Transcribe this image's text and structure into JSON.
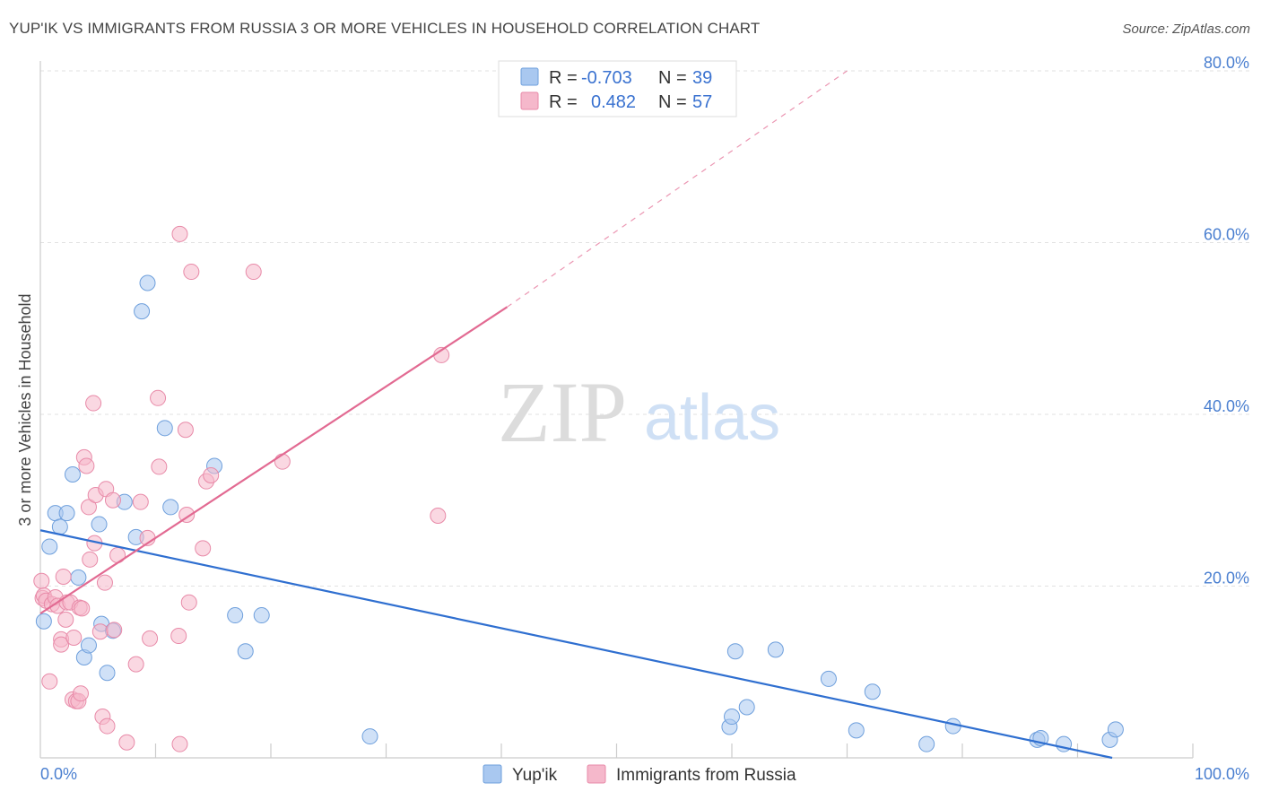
{
  "header": {
    "title": "YUP'IK VS IMMIGRANTS FROM RUSSIA 3 OR MORE VEHICLES IN HOUSEHOLD CORRELATION CHART",
    "source": "Source: ZipAtlas.com"
  },
  "watermark": {
    "zip": "ZIP",
    "atlas": "atlas"
  },
  "legend": {
    "rows": [
      {
        "r_label": "R =",
        "r_value": "-0.703",
        "n_label": "N =",
        "n_value": "39",
        "color": "#a9c8f0"
      },
      {
        "r_label": "R =",
        "r_value": "0.482",
        "n_label": "N =",
        "n_value": "57",
        "color": "#f5b8cb"
      }
    ]
  },
  "bottom_legend": [
    {
      "label": "Yup'ik",
      "color": "#a9c8f0"
    },
    {
      "label": "Immigrants from Russia",
      "color": "#f5b8cb"
    }
  ],
  "chart_data": {
    "type": "scatter",
    "title": "YUP'IK VS IMMIGRANTS FROM RUSSIA 3 OR MORE VEHICLES IN HOUSEHOLD CORRELATION CHART",
    "xlabel": "",
    "ylabel": "3 or more Vehicles in Household",
    "xlim": [
      0,
      100
    ],
    "ylim": [
      0,
      80
    ],
    "x_tick_labels": [
      "0.0%",
      "100.0%"
    ],
    "y_ticks": [
      20,
      40,
      60,
      80
    ],
    "y_tick_labels": [
      "20.0%",
      "40.0%",
      "60.0%",
      "80.0%"
    ],
    "grid": true,
    "legend_position": "top-center",
    "series": [
      {
        "name": "Yup'ik",
        "color": "#a9c8f0",
        "stroke": "#6e9fdc",
        "trend_color": "#2f6fd0",
        "trend": {
          "x0": 0,
          "y0": 26.5,
          "x1": 93,
          "y1": 0
        },
        "points": [
          [
            0.3,
            15.9
          ],
          [
            0.8,
            24.6
          ],
          [
            1.3,
            28.5
          ],
          [
            1.7,
            26.9
          ],
          [
            2.3,
            28.5
          ],
          [
            2.8,
            33.0
          ],
          [
            3.3,
            21.0
          ],
          [
            3.8,
            11.7
          ],
          [
            4.2,
            13.1
          ],
          [
            5.1,
            27.2
          ],
          [
            5.3,
            15.6
          ],
          [
            5.8,
            9.9
          ],
          [
            6.3,
            14.8
          ],
          [
            7.3,
            29.8
          ],
          [
            8.3,
            25.7
          ],
          [
            8.8,
            52.0
          ],
          [
            9.3,
            55.3
          ],
          [
            10.8,
            38.4
          ],
          [
            11.3,
            29.2
          ],
          [
            15.1,
            34.0
          ],
          [
            16.9,
            16.6
          ],
          [
            17.8,
            12.4
          ],
          [
            19.2,
            16.6
          ],
          [
            28.6,
            2.5
          ],
          [
            59.8,
            3.6
          ],
          [
            60.0,
            4.8
          ],
          [
            60.3,
            12.4
          ],
          [
            61.3,
            5.9
          ],
          [
            63.8,
            12.6
          ],
          [
            68.4,
            9.2
          ],
          [
            70.8,
            3.2
          ],
          [
            72.2,
            7.7
          ],
          [
            76.9,
            1.6
          ],
          [
            79.2,
            3.7
          ],
          [
            86.5,
            2.1
          ],
          [
            86.8,
            2.3
          ],
          [
            88.8,
            1.6
          ],
          [
            92.8,
            2.1
          ],
          [
            93.3,
            3.3
          ]
        ]
      },
      {
        "name": "Immigrants from Russia",
        "color": "#f5b8cb",
        "stroke": "#e88aa8",
        "trend_color": "#e26a92",
        "trend": {
          "x0": 0,
          "y0": 16.8,
          "x1": 40.5,
          "y1": 52.5
        },
        "trend_dashed": {
          "x0": 40.5,
          "y0": 52.5,
          "x1": 70,
          "y1": 80
        },
        "points": [
          [
            0.1,
            20.6
          ],
          [
            0.2,
            18.6
          ],
          [
            0.3,
            18.9
          ],
          [
            0.5,
            18.3
          ],
          [
            0.8,
            8.9
          ],
          [
            1.0,
            17.9
          ],
          [
            1.3,
            18.7
          ],
          [
            1.5,
            17.7
          ],
          [
            1.8,
            13.8
          ],
          [
            1.8,
            13.2
          ],
          [
            2.0,
            21.1
          ],
          [
            2.2,
            16.1
          ],
          [
            2.3,
            18.1
          ],
          [
            2.6,
            18.1
          ],
          [
            2.8,
            6.8
          ],
          [
            2.9,
            14.0
          ],
          [
            3.1,
            6.6
          ],
          [
            3.3,
            6.6
          ],
          [
            3.4,
            17.5
          ],
          [
            3.5,
            7.5
          ],
          [
            3.6,
            17.4
          ],
          [
            3.8,
            35.0
          ],
          [
            4.0,
            34.0
          ],
          [
            4.2,
            29.2
          ],
          [
            4.3,
            23.1
          ],
          [
            4.6,
            41.3
          ],
          [
            4.7,
            25.0
          ],
          [
            4.8,
            30.6
          ],
          [
            5.2,
            14.7
          ],
          [
            5.4,
            4.8
          ],
          [
            5.6,
            20.4
          ],
          [
            5.7,
            31.3
          ],
          [
            5.8,
            3.7
          ],
          [
            6.3,
            30.0
          ],
          [
            6.4,
            14.9
          ],
          [
            6.7,
            23.6
          ],
          [
            7.5,
            1.8
          ],
          [
            8.3,
            10.9
          ],
          [
            8.7,
            29.8
          ],
          [
            9.3,
            25.6
          ],
          [
            9.5,
            13.9
          ],
          [
            10.2,
            41.9
          ],
          [
            10.3,
            33.9
          ],
          [
            12.1,
            61.0
          ],
          [
            12.0,
            14.2
          ],
          [
            12.1,
            1.6
          ],
          [
            12.6,
            38.2
          ],
          [
            12.7,
            28.3
          ],
          [
            12.9,
            18.1
          ],
          [
            13.1,
            56.6
          ],
          [
            14.1,
            24.4
          ],
          [
            14.4,
            32.2
          ],
          [
            14.8,
            32.9
          ],
          [
            18.5,
            56.6
          ],
          [
            21.0,
            34.5
          ],
          [
            34.5,
            28.2
          ],
          [
            34.8,
            46.9
          ]
        ]
      }
    ]
  }
}
